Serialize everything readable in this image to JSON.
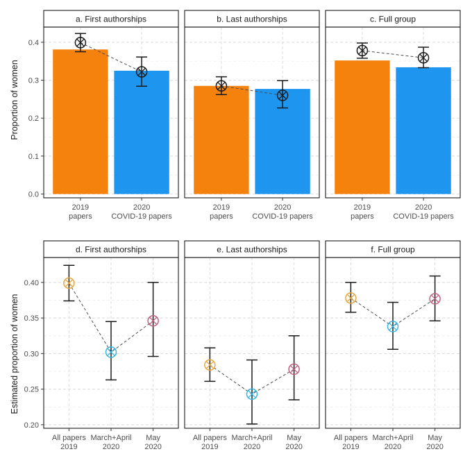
{
  "chart_data": [
    {
      "type": "bar",
      "row": "top",
      "ylabel": "Proportion of women",
      "ylim": [
        -0.01,
        0.44
      ],
      "yticks": [
        0.0,
        0.1,
        0.2,
        0.3,
        0.4
      ],
      "ytick_labels": [
        "0.0",
        "0.1",
        "0.2",
        "0.3",
        "0.4"
      ],
      "categories": [
        {
          "line1": "2019",
          "line2": "papers"
        },
        {
          "line1": "2020",
          "line2": "COVID-19 papers"
        }
      ],
      "bar_colors": [
        "#f5820d",
        "#1e96f0"
      ],
      "panels": [
        {
          "title": "a. First authorships",
          "bars": [
            0.381,
            0.325
          ],
          "points": [
            0.399,
            0.322
          ],
          "ci_low": [
            0.375,
            0.284
          ],
          "ci_high": [
            0.423,
            0.361
          ]
        },
        {
          "title": "b. Last authorships",
          "bars": [
            0.285,
            0.277
          ],
          "points": [
            0.285,
            0.26
          ],
          "ci_low": [
            0.262,
            0.227
          ],
          "ci_high": [
            0.309,
            0.299
          ]
        },
        {
          "title": "c. Full group",
          "bars": [
            0.352,
            0.334
          ],
          "points": [
            0.378,
            0.359
          ],
          "ci_low": [
            0.358,
            0.333
          ],
          "ci_high": [
            0.398,
            0.387
          ]
        }
      ]
    },
    {
      "type": "line",
      "row": "bottom",
      "ylabel": "Estimated proportion of women",
      "ylim": [
        0.195,
        0.435
      ],
      "yticks": [
        0.2,
        0.25,
        0.3,
        0.35,
        0.4
      ],
      "ytick_labels": [
        "0.20",
        "0.25",
        "0.30",
        "0.35",
        "0.40"
      ],
      "categories": [
        {
          "line1": "All papers",
          "line2": "2019"
        },
        {
          "line1": "March+April",
          "line2": "2020"
        },
        {
          "line1": "May",
          "line2": "2020"
        }
      ],
      "point_colors": [
        "#e6a83c",
        "#35b5e5",
        "#c0607f"
      ],
      "panels": [
        {
          "title": "d. First authorships",
          "points": [
            0.399,
            0.302,
            0.346
          ],
          "ci_low": [
            0.374,
            0.263,
            0.296
          ],
          "ci_high": [
            0.424,
            0.345,
            0.4
          ]
        },
        {
          "title": "e. Last authorships",
          "points": [
            0.284,
            0.243,
            0.278
          ],
          "ci_low": [
            0.261,
            0.201,
            0.235
          ],
          "ci_high": [
            0.308,
            0.291,
            0.325
          ]
        },
        {
          "title": "f. Full group",
          "points": [
            0.378,
            0.338,
            0.377
          ],
          "ci_low": [
            0.358,
            0.306,
            0.346
          ],
          "ci_high": [
            0.4,
            0.372,
            0.409
          ]
        }
      ]
    }
  ]
}
